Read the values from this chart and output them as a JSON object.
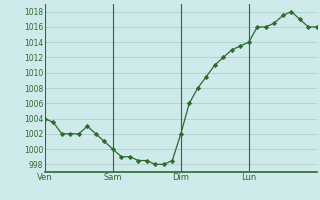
{
  "x_values": [
    0,
    1,
    2,
    3,
    4,
    5,
    6,
    7,
    8,
    9,
    10,
    11,
    12,
    13,
    14,
    15,
    16,
    17,
    18,
    19,
    20,
    21,
    22,
    23,
    24,
    25,
    26,
    27,
    28,
    29,
    30,
    31,
    32
  ],
  "y_values": [
    1004,
    1003.5,
    1002,
    1002,
    1002,
    1003,
    1002,
    1001,
    1000,
    999,
    999,
    998.5,
    998.5,
    998,
    998,
    998.5,
    1002,
    1006,
    1008,
    1009.5,
    1011,
    1012,
    1013,
    1013.5,
    1014,
    1016,
    1016,
    1016.5,
    1017.5,
    1018,
    1017,
    1016,
    1016
  ],
  "x_tick_positions": [
    0,
    8,
    16,
    24
  ],
  "x_tick_labels": [
    "Ven",
    "Sam",
    "Dim",
    "Lun"
  ],
  "x_vline_positions": [
    0,
    8,
    16,
    24
  ],
  "ylim": [
    997,
    1019
  ],
  "xlim": [
    0,
    32
  ],
  "y_ticks": [
    998,
    1000,
    1002,
    1004,
    1006,
    1008,
    1010,
    1012,
    1014,
    1016,
    1018
  ],
  "line_color": "#2d6a2d",
  "marker": "D",
  "marker_size": 2.2,
  "bg_color": "#ceeaea",
  "grid_color": "#a8c8c8",
  "vline_color": "#2d6a2d",
  "tick_label_color": "#2d6a2d",
  "bottom_line_color": "#2d6a2d",
  "figsize": [
    3.2,
    2.0
  ],
  "dpi": 100
}
